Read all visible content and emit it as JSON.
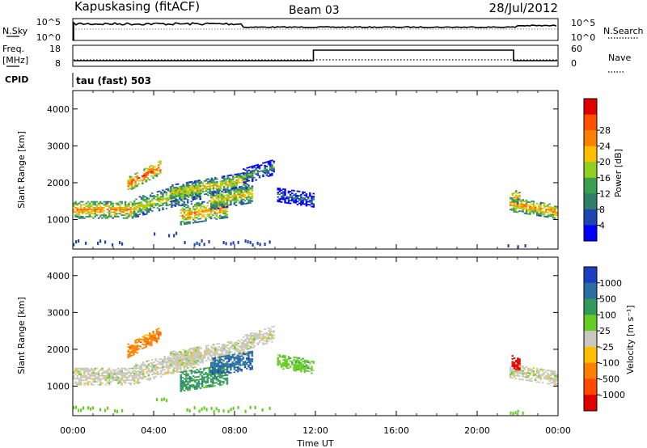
{
  "header": {
    "station": "Kapuskasing (fitACF)",
    "beam": "Beam 03",
    "date": "28/Jul/2012"
  },
  "small_panels": {
    "nsky_label": "N.Sky",
    "nsky_ticks": [
      "10^5",
      "10^0"
    ],
    "nsearch_label": "N.Search",
    "nsearch_ticks": [
      "10^5",
      "10^0"
    ],
    "freq_label_1": "Freq.",
    "freq_label_2": "[MHz]",
    "freq_ticks": [
      "18",
      "8"
    ],
    "nave_label": "Nave",
    "nave_ticks": [
      "60",
      "0"
    ],
    "cpid_label": "CPID",
    "cpid_value": "tau (fast) 503"
  },
  "chart_data": [
    {
      "type": "heatmap",
      "name": "power",
      "xlabel": "",
      "ylabel": "Slant Range [km]",
      "ylim": [
        200,
        4500
      ],
      "yticks": [
        "1000",
        "2000",
        "3000",
        "4000"
      ],
      "colorbar_label": "Power [dB]",
      "colorbar_ticks": [
        "4",
        "8",
        "12",
        "16",
        "20",
        "24",
        "28"
      ],
      "colors": [
        "#0000ff",
        "#1f45b0",
        "#2f7f6a",
        "#3aa050",
        "#90d020",
        "#ffbf00",
        "#ff8000",
        "#ff5000",
        "#e00000"
      ]
    },
    {
      "type": "heatmap",
      "name": "velocity",
      "xlabel": "Time UT",
      "ylabel": "Slant Range [km]",
      "ylim": [
        200,
        4500
      ],
      "yticks": [
        "1000",
        "2000",
        "3000",
        "4000"
      ],
      "xticks": [
        "00:00",
        "04:00",
        "08:00",
        "12:00",
        "16:00",
        "20:00",
        "00:00"
      ],
      "colorbar_label": "Velocity [m s⁻¹]",
      "colorbar_ticks": [
        "1000",
        "500",
        "100",
        "25",
        "-25",
        "-100",
        "-500",
        "-1000"
      ],
      "colors": [
        "#1b3fc4",
        "#2a6fa0",
        "#2f9a5a",
        "#66cc22",
        "#c8c8be",
        "#ffbf00",
        "#ff8000",
        "#ff4a00",
        "#e00000"
      ]
    }
  ]
}
